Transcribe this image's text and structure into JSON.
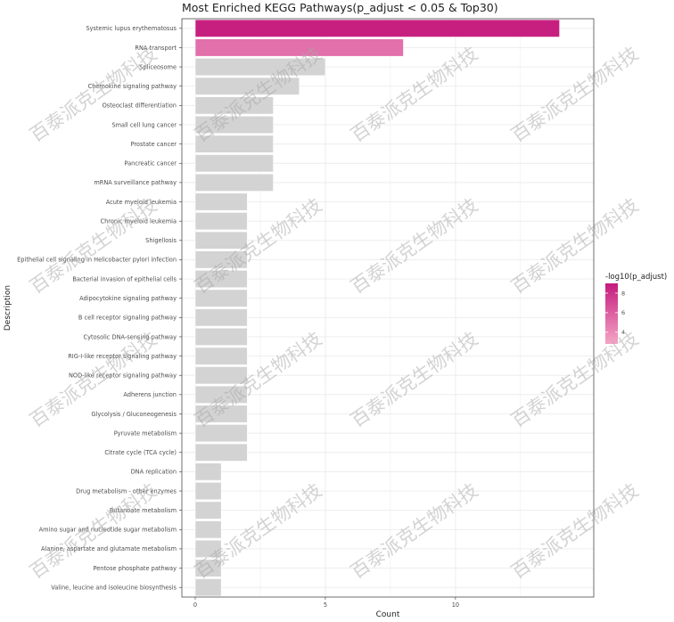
{
  "watermark_text": "百泰派克生物科技",
  "chart_data": {
    "type": "bar",
    "orientation": "horizontal",
    "title": "Most Enriched KEGG Pathways(p_adjust < 0.05 & Top30)",
    "xlabel": "Count",
    "ylabel": "Description",
    "xlim": [
      0,
      14.8
    ],
    "x_ticks": [
      0,
      5,
      10
    ],
    "grid": true,
    "categories": [
      "Systemic lupus erythematosus",
      "RNA transport",
      "Spliceosome",
      "Chemokine signaling pathway",
      "Osteoclast differentiation",
      "Small cell lung cancer",
      "Prostate cancer",
      "Pancreatic cancer",
      "mRNA surveillance pathway",
      "Acute myeloid leukemia",
      "Chronic myeloid leukemia",
      "Shigellosis",
      "Epithelial cell signaling in Helicobacter pylori infection",
      "Bacterial invasion of epithelial cells",
      "Adipocytokine signaling pathway",
      "B cell receptor signaling pathway",
      "Cytosolic DNA-sensing pathway",
      "RIG-I-like receptor signaling pathway",
      "NOD-like receptor signaling pathway",
      "Adherens junction",
      "Glycolysis / Gluconeogenesis",
      "Pyruvate metabolism",
      "Citrate cycle (TCA cycle)",
      "DNA replication",
      "Drug metabolism - other enzymes",
      "Butanoate metabolism",
      "Amino sugar and nucleotide sugar metabolism",
      "Alanine, aspartate and glutamate metabolism",
      "Pentose phosphate pathway",
      "Valine, leucine and isoleucine biosynthesis"
    ],
    "values": [
      14,
      8,
      5,
      4,
      3,
      3,
      3,
      3,
      3,
      2,
      2,
      2,
      2,
      2,
      2,
      2,
      2,
      2,
      2,
      2,
      2,
      2,
      2,
      1,
      1,
      1,
      1,
      1,
      1,
      1
    ],
    "color_values": [
      8.8,
      5.2,
      null,
      null,
      null,
      null,
      null,
      null,
      null,
      null,
      null,
      null,
      null,
      null,
      null,
      null,
      null,
      null,
      null,
      null,
      null,
      null,
      null,
      null,
      null,
      null,
      null,
      null,
      null,
      null
    ],
    "colors": {
      "high": "#c51b7d",
      "low": "#f4a6c6",
      "not_significant": "#d3d3d3",
      "grid": "#ebebeb",
      "panel_border": "#333333"
    },
    "legend": {
      "title": "-log10(p_adjust)",
      "ticks": [
        4,
        6,
        8
      ],
      "range": [
        2.8,
        9.0
      ],
      "placement": "right"
    }
  }
}
